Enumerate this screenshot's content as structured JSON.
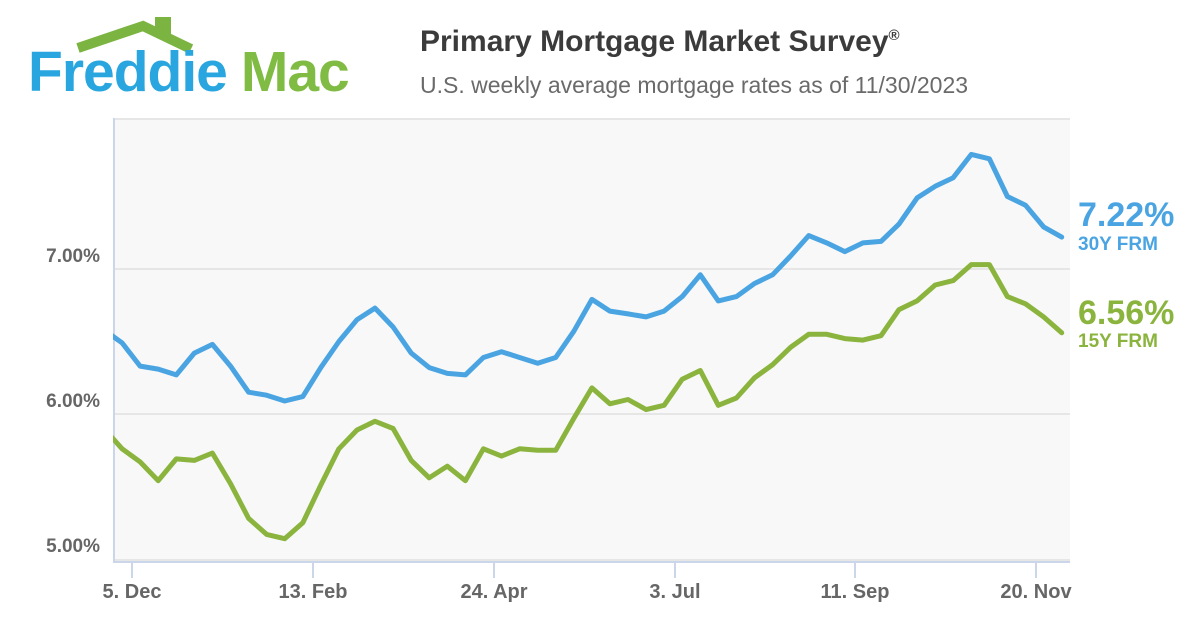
{
  "header": {
    "logo": {
      "word1": "Freddie",
      "word2": "Mac",
      "blue": "#29A6DF",
      "green": "#80BB43",
      "roof_green": "#7CB441"
    },
    "title": "Primary Mortgage Market Survey",
    "title_mark": "®",
    "subtitle": "U.S. weekly average mortgage rates as of 11/30/2023"
  },
  "chart_data": {
    "type": "line",
    "title": "Primary Mortgage Market Survey",
    "subtitle": "U.S. weekly average mortgage rates as of 11/30/2023",
    "x_description": "weekly observations, late Nov 2022 through 11/30/2023",
    "x_tick_labels": [
      "5. Dec",
      "13. Feb",
      "24. Apr",
      "3. Jul",
      "11. Sep",
      "20. Nov"
    ],
    "y_tick_labels": [
      "7.00%",
      "6.00%",
      "5.00%"
    ],
    "y_ticks": [
      7.0,
      6.0,
      5.0
    ],
    "ylim": [
      4.93,
      8.04
    ],
    "grid": "horizontal",
    "legend_position": "right-of-plot, colored value callouts",
    "plot_background": "#F8F8F8",
    "series": [
      {
        "name": "30Y FRM",
        "current_label": "7.22%",
        "current_value": 7.22,
        "color": "#4AA4E2",
        "values": [
          6.58,
          6.49,
          6.33,
          6.31,
          6.27,
          6.42,
          6.48,
          6.33,
          6.15,
          6.13,
          6.09,
          6.12,
          6.32,
          6.5,
          6.65,
          6.73,
          6.6,
          6.42,
          6.32,
          6.28,
          6.27,
          6.39,
          6.43,
          6.39,
          6.35,
          6.39,
          6.57,
          6.79,
          6.71,
          6.69,
          6.67,
          6.71,
          6.81,
          6.96,
          6.78,
          6.81,
          6.9,
          6.96,
          7.09,
          7.23,
          7.18,
          7.12,
          7.18,
          7.19,
          7.31,
          7.49,
          7.57,
          7.63,
          7.79,
          7.76,
          7.5,
          7.44,
          7.29,
          7.22
        ]
      },
      {
        "name": "15Y FRM",
        "current_label": "6.56%",
        "current_value": 6.56,
        "color": "#8BB43E",
        "values": [
          5.9,
          5.76,
          5.67,
          5.54,
          5.69,
          5.68,
          5.73,
          5.52,
          5.28,
          5.17,
          5.14,
          5.25,
          5.51,
          5.76,
          5.89,
          5.95,
          5.9,
          5.68,
          5.56,
          5.64,
          5.54,
          5.76,
          5.71,
          5.76,
          5.75,
          5.75,
          5.97,
          6.18,
          6.07,
          6.1,
          6.03,
          6.06,
          6.24,
          6.3,
          6.06,
          6.11,
          6.25,
          6.34,
          6.46,
          6.55,
          6.55,
          6.52,
          6.51,
          6.54,
          6.72,
          6.78,
          6.89,
          6.92,
          7.03,
          7.03,
          6.81,
          6.76,
          6.67,
          6.56
        ]
      }
    ]
  }
}
